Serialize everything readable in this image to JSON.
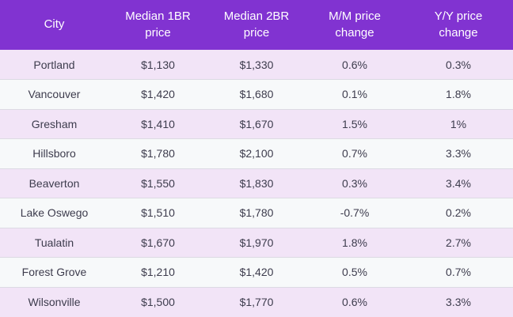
{
  "chart_data": {
    "type": "table",
    "columns": [
      "City",
      "Median 1BR price",
      "Median 2BR price",
      "M/M price change",
      "Y/Y price change"
    ],
    "rows": [
      [
        "Portland",
        "$1,130",
        "$1,330",
        "0.6%",
        "0.3%"
      ],
      [
        "Vancouver",
        "$1,420",
        "$1,680",
        "0.1%",
        "1.8%"
      ],
      [
        "Gresham",
        "$1,410",
        "$1,670",
        "1.5%",
        "1%"
      ],
      [
        "Hillsboro",
        "$1,780",
        "$2,100",
        "0.7%",
        "3.3%"
      ],
      [
        "Beaverton",
        "$1,550",
        "$1,830",
        "0.3%",
        "3.4%"
      ],
      [
        "Lake Oswego",
        "$1,510",
        "$1,780",
        "-0.7%",
        "0.2%"
      ],
      [
        "Tualatin",
        "$1,670",
        "$1,970",
        "1.8%",
        "2.7%"
      ],
      [
        "Forest Grove",
        "$1,210",
        "$1,420",
        "0.5%",
        "0.7%"
      ],
      [
        "Wilsonville",
        "$1,500",
        "$1,770",
        "0.6%",
        "3.3%"
      ]
    ],
    "title": "",
    "layout": {
      "header_rows": 1,
      "zebra_striping": true,
      "text_alignment": "center"
    }
  },
  "colors": {
    "header_bg": "#8133d1",
    "header_text": "#ffffff",
    "row_odd_bg": "#f2e4f7",
    "row_even_bg": "#f7f9fa",
    "body_text": "#3d3c4d",
    "divider": "#dcdae3"
  }
}
